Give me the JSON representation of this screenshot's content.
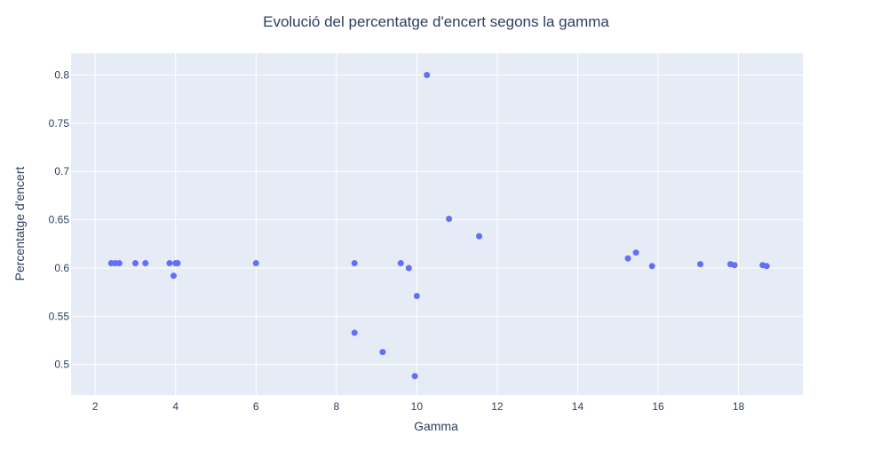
{
  "chart_data": {
    "type": "scatter",
    "title": "Evolució del percentatge d'encert segons la gamma",
    "xlabel": "Gamma",
    "ylabel": "Percentatge d'encert",
    "xlim": [
      1.4,
      19.6
    ],
    "ylim": [
      0.4685,
      0.8225
    ],
    "x_ticks": [
      2,
      4,
      6,
      8,
      10,
      12,
      14,
      16,
      18
    ],
    "y_ticks": [
      0.5,
      0.55,
      0.6,
      0.65,
      0.7,
      0.75,
      0.8
    ],
    "grid": true,
    "colors": {
      "plot_bg": "#e5ecf6",
      "grid": "#ffffff",
      "marker": "#636efa"
    },
    "points": [
      {
        "x": 2.4,
        "y": 0.605
      },
      {
        "x": 2.5,
        "y": 0.605
      },
      {
        "x": 2.6,
        "y": 0.605
      },
      {
        "x": 3.0,
        "y": 0.605
      },
      {
        "x": 3.25,
        "y": 0.605
      },
      {
        "x": 3.85,
        "y": 0.605
      },
      {
        "x": 3.95,
        "y": 0.592
      },
      {
        "x": 4.0,
        "y": 0.605
      },
      {
        "x": 4.05,
        "y": 0.605
      },
      {
        "x": 6.0,
        "y": 0.605
      },
      {
        "x": 8.45,
        "y": 0.605
      },
      {
        "x": 8.45,
        "y": 0.533
      },
      {
        "x": 9.15,
        "y": 0.513
      },
      {
        "x": 9.6,
        "y": 0.605
      },
      {
        "x": 9.8,
        "y": 0.6
      },
      {
        "x": 9.95,
        "y": 0.488
      },
      {
        "x": 10.0,
        "y": 0.571
      },
      {
        "x": 10.25,
        "y": 0.8
      },
      {
        "x": 10.8,
        "y": 0.651
      },
      {
        "x": 11.55,
        "y": 0.633
      },
      {
        "x": 15.25,
        "y": 0.61
      },
      {
        "x": 15.45,
        "y": 0.616
      },
      {
        "x": 15.85,
        "y": 0.602
      },
      {
        "x": 17.05,
        "y": 0.604
      },
      {
        "x": 17.8,
        "y": 0.604
      },
      {
        "x": 17.9,
        "y": 0.603
      },
      {
        "x": 18.6,
        "y": 0.603
      },
      {
        "x": 18.7,
        "y": 0.602
      }
    ]
  }
}
